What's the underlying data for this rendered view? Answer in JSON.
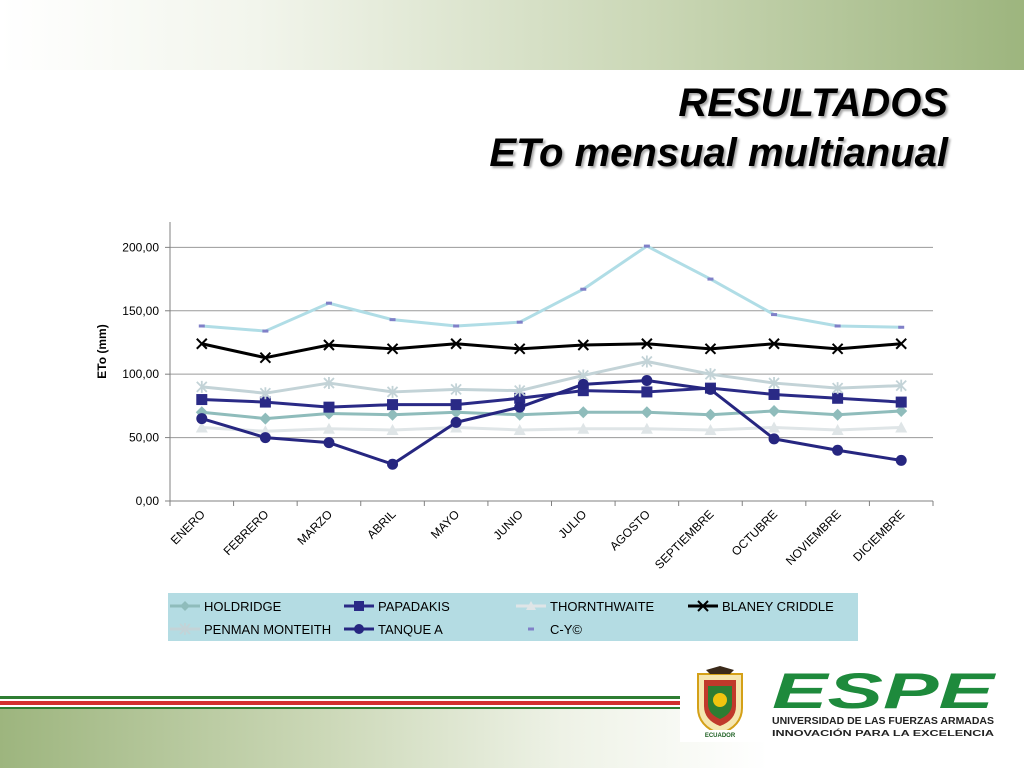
{
  "slide": {
    "title_line1": "RESULTADOS",
    "title_line2": "ETo mensual multianual"
  },
  "logo": {
    "name": "ESPE",
    "subtitle": "UNIVERSIDAD DE LAS FUERZAS ARMADAS",
    "tagline": "INNOVACIÓN PARA LA EXCELENCIA",
    "crest_caption": "ECUADOR",
    "colors": {
      "brand_green": "#1e8a3c",
      "crest_red": "#c0392b",
      "crest_gold": "#d4a017"
    }
  },
  "colors": {
    "stripe_green": "#2e7d32",
    "stripe_red": "#d32f2f",
    "legend_bg": "#b4dce3"
  },
  "chart_data": {
    "type": "line",
    "title": "",
    "xlabel": "",
    "ylabel": "ETo (mm)",
    "ylim": [
      0,
      220
    ],
    "yticks": [
      "0,00",
      "50,00",
      "100,00",
      "150,00",
      "200,00"
    ],
    "categories": [
      "ENERO",
      "FEBRERO",
      "MARZO",
      "ABRIL",
      "MAYO",
      "JUNIO",
      "JULIO",
      "AGOSTO",
      "SEPTIEMBRE",
      "OCTUBRE",
      "NOVIEMBRE",
      "DICIEMBRE"
    ],
    "grid": true,
    "legend_position": "bottom",
    "series": [
      {
        "name": "HOLDRIDGE",
        "color": "#8fbcbb",
        "marker": "diamond",
        "values": [
          70,
          65,
          69,
          68,
          70,
          68,
          70,
          70,
          68,
          71,
          68,
          71
        ]
      },
      {
        "name": "PAPADAKIS",
        "color": "#2a2a86",
        "marker": "square",
        "values": [
          80,
          78,
          74,
          76,
          76,
          81,
          87,
          86,
          89,
          84,
          81,
          78
        ]
      },
      {
        "name": "THORNTHWAITE",
        "color": "#dfe5e7",
        "marker": "triangle",
        "values": [
          58,
          55,
          57,
          56,
          58,
          56,
          57,
          57,
          56,
          58,
          56,
          58
        ]
      },
      {
        "name": "BLANEY CRIDDLE",
        "color": "#000000",
        "marker": "x",
        "values": [
          124,
          113,
          123,
          120,
          124,
          120,
          123,
          124,
          120,
          124,
          120,
          124
        ]
      },
      {
        "name": "PENMAN MONTEITH",
        "color": "#c3d3d7",
        "marker": "asterisk",
        "values": [
          90,
          85,
          93,
          86,
          88,
          87,
          99,
          110,
          100,
          93,
          89,
          91
        ]
      },
      {
        "name": "TANQUE A",
        "color": "#262680",
        "marker": "circle",
        "values": [
          65,
          50,
          46,
          29,
          62,
          74,
          92,
          95,
          88,
          49,
          40,
          32
        ]
      },
      {
        "name": "C-Y©",
        "color": "#b0dde6",
        "marker": "dash",
        "values": [
          138,
          134,
          156,
          143,
          138,
          141,
          167,
          201,
          175,
          147,
          138,
          137
        ]
      }
    ]
  }
}
